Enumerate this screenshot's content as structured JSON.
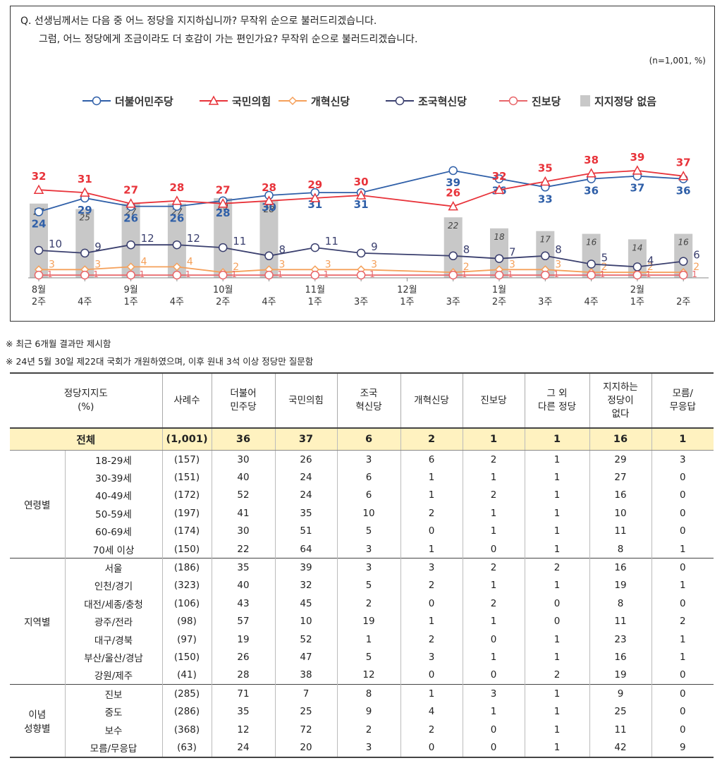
{
  "question": {
    "line1": "Q. 선생님께서는 다음 중 어느 정당을 지지하십니까? 무작위 순으로 불러드리겠습니다.",
    "line2": "그럼, 어느 정당에게 조금이라도 더 호감이 가는 편인가요? 무작위 순으로 불러드리겠습니다.",
    "sample": "(n=1,001, %)"
  },
  "chart_data": {
    "type": "line",
    "categories": [
      "8월 2주",
      "4주",
      "9월 1주",
      "4주",
      "10월 2주",
      "4주",
      "11월 1주",
      "3주",
      "12월 1주",
      "3주",
      "1월 2주",
      "3주",
      "4주",
      "2월 1주",
      "2주"
    ],
    "x_label_lines": [
      [
        "8월",
        "2주"
      ],
      [
        "",
        "4주"
      ],
      [
        "9월",
        "1주"
      ],
      [
        "",
        "4주"
      ],
      [
        "10월",
        "2주"
      ],
      [
        "",
        "4주"
      ],
      [
        "11월",
        "1주"
      ],
      [
        "",
        "3주"
      ],
      [
        "12월",
        "1주"
      ],
      [
        "",
        "3주"
      ],
      [
        "1월",
        "2주"
      ],
      [
        "",
        "3주"
      ],
      [
        "",
        "4주"
      ],
      [
        "2월",
        "1주"
      ],
      [
        "",
        "2주"
      ]
    ],
    "series": [
      {
        "name": "더불어민주당",
        "color": "#2f5fa8",
        "marker": "circle",
        "values": [
          24,
          29,
          26,
          26,
          28,
          30,
          31,
          31,
          null,
          39,
          36,
          33,
          36,
          37,
          36
        ]
      },
      {
        "name": "국민의힘",
        "color": "#e8333a",
        "marker": "triangle",
        "values": [
          32,
          31,
          27,
          28,
          27,
          28,
          29,
          30,
          null,
          26,
          32,
          35,
          38,
          39,
          37
        ]
      },
      {
        "name": "개혁신당",
        "color": "#f5a05a",
        "marker": "diamond",
        "values": [
          3,
          3,
          4,
          4,
          2,
          3,
          3,
          3,
          null,
          2,
          3,
          3,
          2,
          2,
          2
        ]
      },
      {
        "name": "조국혁신당",
        "color": "#3a3f6e",
        "marker": "circle",
        "values": [
          10,
          9,
          12,
          12,
          11,
          8,
          11,
          9,
          null,
          8,
          7,
          8,
          5,
          4,
          6
        ]
      },
      {
        "name": "진보당",
        "color": "#e8666a",
        "marker": "circle",
        "values": [
          1,
          1,
          1,
          1,
          1,
          1,
          1,
          1,
          null,
          1,
          1,
          1,
          1,
          1,
          1
        ]
      }
    ],
    "bars": {
      "name": "지지정당 없음",
      "color": "#c8c8c8",
      "values": [
        27,
        25,
        27,
        27,
        29,
        28,
        null,
        null,
        null,
        22,
        18,
        17,
        16,
        14,
        16
      ]
    },
    "ylim": [
      0,
      45
    ]
  },
  "notes": [
    "※ 최근 6개월 결과만 제시함",
    "※ 24년 5월 30일 제22대 국회가 개원하였으며, 이후 원내 3석 이상 정당만 질문함"
  ],
  "table": {
    "headers": [
      "정당지지도\n(%)",
      "사례수",
      "더불어\n민주당",
      "국민의힘",
      "조국\n혁신당",
      "개혁신당",
      "진보당",
      "그 외\n다른 정당",
      "지지하는\n정당이\n없다",
      "모름/\n무응답"
    ],
    "total": {
      "label": "전체",
      "n": "(1,001)",
      "values": [
        "36",
        "37",
        "6",
        "2",
        "1",
        "1",
        "16",
        "1"
      ]
    },
    "groups": [
      {
        "name": "연령별",
        "rows": [
          {
            "label": "18-29세",
            "n": "(157)",
            "values": [
              "30",
              "26",
              "3",
              "6",
              "2",
              "1",
              "29",
              "3"
            ]
          },
          {
            "label": "30-39세",
            "n": "(151)",
            "values": [
              "40",
              "24",
              "6",
              "1",
              "1",
              "1",
              "27",
              "0"
            ]
          },
          {
            "label": "40-49세",
            "n": "(172)",
            "values": [
              "52",
              "24",
              "6",
              "1",
              "2",
              "1",
              "16",
              "0"
            ]
          },
          {
            "label": "50-59세",
            "n": "(197)",
            "values": [
              "41",
              "35",
              "10",
              "2",
              "1",
              "1",
              "10",
              "0"
            ]
          },
          {
            "label": "60-69세",
            "n": "(174)",
            "values": [
              "30",
              "51",
              "5",
              "0",
              "1",
              "1",
              "11",
              "0"
            ]
          },
          {
            "label": "70세 이상",
            "n": "(150)",
            "values": [
              "22",
              "64",
              "3",
              "1",
              "0",
              "1",
              "8",
              "1"
            ]
          }
        ]
      },
      {
        "name": "지역별",
        "rows": [
          {
            "label": "서울",
            "n": "(186)",
            "values": [
              "35",
              "39",
              "3",
              "3",
              "2",
              "2",
              "16",
              "0"
            ]
          },
          {
            "label": "인천/경기",
            "n": "(323)",
            "values": [
              "40",
              "32",
              "5",
              "2",
              "1",
              "1",
              "19",
              "1"
            ]
          },
          {
            "label": "대전/세종/충청",
            "n": "(106)",
            "values": [
              "43",
              "45",
              "2",
              "0",
              "2",
              "0",
              "8",
              "0"
            ]
          },
          {
            "label": "광주/전라",
            "n": "(98)",
            "values": [
              "57",
              "10",
              "19",
              "1",
              "1",
              "0",
              "11",
              "2"
            ]
          },
          {
            "label": "대구/경북",
            "n": "(97)",
            "values": [
              "19",
              "52",
              "1",
              "2",
              "0",
              "1",
              "23",
              "1"
            ]
          },
          {
            "label": "부산/울산/경남",
            "n": "(150)",
            "values": [
              "26",
              "47",
              "5",
              "3",
              "1",
              "1",
              "16",
              "1"
            ]
          },
          {
            "label": "강원/제주",
            "n": "(41)",
            "values": [
              "28",
              "38",
              "12",
              "0",
              "0",
              "2",
              "19",
              "0"
            ]
          }
        ]
      },
      {
        "name": "이념\n성향별",
        "rows": [
          {
            "label": "진보",
            "n": "(285)",
            "values": [
              "71",
              "7",
              "8",
              "1",
              "3",
              "1",
              "9",
              "0"
            ]
          },
          {
            "label": "중도",
            "n": "(286)",
            "values": [
              "35",
              "25",
              "9",
              "4",
              "1",
              "1",
              "25",
              "0"
            ]
          },
          {
            "label": "보수",
            "n": "(368)",
            "values": [
              "12",
              "72",
              "2",
              "2",
              "0",
              "1",
              "11",
              "0"
            ]
          },
          {
            "label": "모름/무응답",
            "n": "(63)",
            "values": [
              "24",
              "20",
              "3",
              "0",
              "0",
              "1",
              "42",
              "9"
            ]
          }
        ]
      }
    ]
  }
}
